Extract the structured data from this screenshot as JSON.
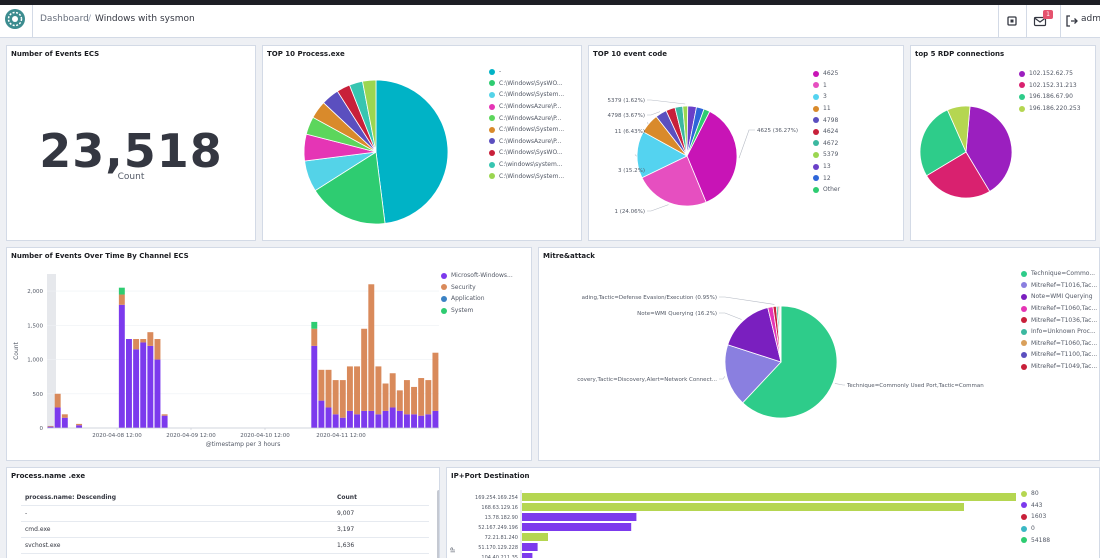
{
  "header": {
    "breadcrumb_root": "Dashboard",
    "breadcrumb_current": "Windows with sysmon",
    "notifications_count": "1",
    "user_label": "adm"
  },
  "panels": {
    "events_count": {
      "title": "Number of Events ECS",
      "value": "23,518",
      "label": "Count"
    },
    "top_process": {
      "title": "TOP 10 Process.exe",
      "legend": [
        {
          "label": "-",
          "color": "#00b3c6"
        },
        {
          "label": "C:\\Windows\\SysWO...",
          "color": "#2ecc71"
        },
        {
          "label": "C:\\Windows\\System...",
          "color": "#54d3e8"
        },
        {
          "label": "C:\\WindowsAzure\\P...",
          "color": "#e535b5"
        },
        {
          "label": "C:\\WindowsAzure\\P...",
          "color": "#5cd65c"
        },
        {
          "label": "C:\\Windows\\System...",
          "color": "#d98a2b"
        },
        {
          "label": "C:\\WindowsAzure\\P...",
          "color": "#5b4fbf"
        },
        {
          "label": "C:\\Windows\\SysWO...",
          "color": "#c8203a"
        },
        {
          "label": "C:\\windows\\system...",
          "color": "#37c5b1"
        },
        {
          "label": "C:\\Windows\\System...",
          "color": "#9bd651"
        }
      ]
    },
    "top_event_code": {
      "title": "TOP 10 event code",
      "legend": [
        {
          "label": "4625",
          "color": "#c814b6"
        },
        {
          "label": "1",
          "color": "#e64fc0"
        },
        {
          "label": "3",
          "color": "#54d3f0"
        },
        {
          "label": "11",
          "color": "#d98a2b"
        },
        {
          "label": "4798",
          "color": "#5b4fbf"
        },
        {
          "label": "4624",
          "color": "#c8203a"
        },
        {
          "label": "4672",
          "color": "#3bb8a0"
        },
        {
          "label": "5379",
          "color": "#9bd651"
        },
        {
          "label": "13",
          "color": "#6a40c8"
        },
        {
          "label": "12",
          "color": "#2e66d9"
        },
        {
          "label": "Other",
          "color": "#2ecc71"
        }
      ],
      "slice_labels": [
        {
          "text": "5379 (1.62%)"
        },
        {
          "text": "4798 (3.67%)"
        },
        {
          "text": "11 (6.43%)"
        },
        {
          "text": "3 (15.2%)"
        },
        {
          "text": "1 (24.06%)"
        },
        {
          "text": "4625 (36.27%)"
        }
      ]
    },
    "rdp": {
      "title": "top 5 RDP connections",
      "legend": [
        {
          "label": "102.152.62.75",
          "color": "#9b1fbf"
        },
        {
          "label": "102.152.31.213",
          "color": "#d9216f"
        },
        {
          "label": "196.186.67.90",
          "color": "#2ecc8a"
        },
        {
          "label": "196.186.220.253",
          "color": "#b5d651"
        }
      ]
    },
    "events_over_time": {
      "title": "Number of Events Over Time By Channel ECS",
      "ylabel": "Count",
      "xlabel": "@timestamp per 3 hours",
      "yticks": [
        "2,000",
        "1,500",
        "1,000",
        "500",
        "0"
      ],
      "xticks": [
        "2020-04-08 12:00",
        "2020-04-09 12:00",
        "2020-04-10 12:00",
        "2020-04-11 12:00"
      ],
      "legend": [
        {
          "label": "Microsoft-Windows...",
          "color": "#7c3aed"
        },
        {
          "label": "Security",
          "color": "#d98a5b"
        },
        {
          "label": "Application",
          "color": "#3b82c4"
        },
        {
          "label": "System",
          "color": "#2ecc71"
        }
      ]
    },
    "mitre": {
      "title": "Mitre&attack",
      "legend": [
        {
          "label": "Technique=Commo...",
          "color": "#2ecc8a"
        },
        {
          "label": "MitreRef=T1016,Tac...",
          "color": "#8a7fe0"
        },
        {
          "label": "Note=WMI Querying",
          "color": "#7a1fbf"
        },
        {
          "label": "MitreRef=T1060,Tac...",
          "color": "#e535b5"
        },
        {
          "label": "MitreRef=T1036,Tac...",
          "color": "#c8203a"
        },
        {
          "label": "Info=Unknown Proc...",
          "color": "#3bb8a0"
        },
        {
          "label": "MitreRef=T1060,Tac...",
          "color": "#d9a05b"
        },
        {
          "label": "MitreRef=T1100,Tac...",
          "color": "#5b4fbf"
        },
        {
          "label": "MitreRef=T1049,Tac...",
          "color": "#c8203a"
        }
      ],
      "slice_labels": [
        {
          "text": "ading,Tactic=Defense Evasion/Execution (0.95%)"
        },
        {
          "text": "Note=WMI Querying (16.2%)"
        },
        {
          "text": "covery,Tactic=Discovery,Alert=Network Connect..."
        },
        {
          "text": "Technique=Commonly Used Port,Tactic=Comman"
        }
      ]
    },
    "process_name": {
      "title": "Process.name .exe",
      "col1": "process.name: Descending",
      "col2": "Count",
      "rows": [
        {
          "name": "-",
          "count": "9,007"
        },
        {
          "name": "cmd.exe",
          "count": "3,197"
        },
        {
          "name": "svchost.exe",
          "count": "1,636"
        }
      ]
    },
    "ip_port": {
      "title": "IP+Port Destination",
      "ylabel": "IP",
      "categories": [
        "169.254.169.254",
        "168.63.129.16",
        "13.78.182.90",
        "52.167.249.196",
        "72.21.81.240",
        "51.170.129.228",
        "104.40.211.35"
      ],
      "legend": [
        {
          "label": "80",
          "color": "#b5d651"
        },
        {
          "label": "443",
          "color": "#7c3aed"
        },
        {
          "label": "1603",
          "color": "#c8203a"
        },
        {
          "label": "0",
          "color": "#3bb8c4"
        },
        {
          "label": "54188",
          "color": "#2ecc71"
        }
      ]
    }
  },
  "chart_data": [
    {
      "type": "pie",
      "title": "TOP 10 Process.exe",
      "categories": [
        "-",
        "C:\\Windows\\SysWO...",
        "C:\\Windows\\System...",
        "C:\\WindowsAzure\\P...",
        "C:\\WindowsAzure\\P...",
        "C:\\Windows\\System...",
        "C:\\WindowsAzure\\P...",
        "C:\\Windows\\SysWO...",
        "C:\\windows\\system...",
        "C:\\Windows\\System..."
      ],
      "values": [
        48,
        18,
        7,
        6,
        4,
        4,
        4,
        3,
        3,
        3
      ]
    },
    {
      "type": "pie",
      "title": "TOP 10 event code",
      "categories": [
        "4625",
        "1",
        "3",
        "11",
        "4798",
        "4624",
        "4672",
        "5379",
        "13",
        "12",
        "Other"
      ],
      "values": [
        36.27,
        24.06,
        15.2,
        6.43,
        3.67,
        3.0,
        2.5,
        1.62,
        2.8,
        2.5,
        1.95
      ]
    },
    {
      "type": "pie",
      "title": "top 5 RDP connections",
      "categories": [
        "102.152.62.75",
        "102.152.31.213",
        "196.186.67.90",
        "196.186.220.253"
      ],
      "values": [
        40,
        25,
        27,
        8
      ]
    },
    {
      "type": "bar",
      "title": "Number of Events Over Time By Channel ECS",
      "xlabel": "@timestamp per 3 hours",
      "ylabel": "Count",
      "ylim": [
        0,
        2250
      ],
      "stacked": true,
      "series": [
        {
          "name": "Microsoft-Windows...",
          "values": [
            20,
            300,
            150,
            0,
            40,
            0,
            0,
            0,
            0,
            0,
            1800,
            1300,
            1150,
            1250,
            1200,
            1000,
            180,
            0,
            0,
            0,
            0,
            0,
            0,
            0,
            0,
            0,
            0,
            0,
            0,
            0,
            0,
            0,
            0,
            0,
            0,
            0,
            0,
            1200,
            400,
            300,
            200,
            150,
            250,
            200,
            250,
            250,
            200,
            250,
            300,
            250,
            200,
            200,
            180,
            200,
            250
          ]
        },
        {
          "name": "Security",
          "values": [
            10,
            200,
            50,
            0,
            20,
            0,
            0,
            0,
            0,
            0,
            150,
            0,
            150,
            50,
            200,
            300,
            20,
            0,
            0,
            0,
            0,
            0,
            0,
            0,
            0,
            0,
            0,
            0,
            0,
            0,
            0,
            0,
            0,
            0,
            0,
            0,
            0,
            250,
            450,
            550,
            500,
            550,
            650,
            700,
            1200,
            1850,
            700,
            400,
            500,
            300,
            500,
            400,
            550,
            500,
            850
          ]
        },
        {
          "name": "System",
          "values": [
            0,
            0,
            0,
            0,
            0,
            0,
            0,
            0,
            0,
            0,
            100,
            0,
            0,
            0,
            0,
            0,
            0,
            0,
            0,
            0,
            0,
            0,
            0,
            0,
            0,
            0,
            0,
            0,
            0,
            0,
            0,
            0,
            0,
            0,
            0,
            0,
            0,
            100,
            0,
            0,
            0,
            0,
            0,
            0,
            0,
            0,
            0,
            0,
            0,
            0,
            0,
            0,
            0,
            0,
            0
          ]
        }
      ]
    },
    {
      "type": "pie",
      "title": "Mitre&attack",
      "categories": [
        "Technique=Commo...",
        "MitreRef=T1016,Tac...",
        "Note=WMI Querying",
        "MitreRef=T1060,Tac...",
        "MitreRef=T1036,Tac...",
        "Info=Unknown Proc...",
        "MitreRef=T1060,Tac...",
        "MitreRef=T1100,Tac...",
        "MitreRef=T1049,Tac..."
      ],
      "values": [
        62,
        18,
        16.2,
        1.5,
        0.95,
        0.5,
        0.4,
        0.3,
        0.15
      ]
    },
    {
      "type": "bar",
      "title": "IP+Port Destination",
      "orientation": "horizontal",
      "categories": [
        "169.254.169.254",
        "168.63.129.16",
        "13.78.182.90",
        "52.167.249.196",
        "72.21.81.240",
        "51.170.129.228",
        "104.40.211.35"
      ],
      "series": [
        {
          "name": "80",
          "values": [
            1900,
            1700,
            0,
            0,
            100,
            0,
            0
          ]
        },
        {
          "name": "443",
          "values": [
            0,
            0,
            440,
            420,
            0,
            60,
            40
          ]
        }
      ]
    }
  ]
}
